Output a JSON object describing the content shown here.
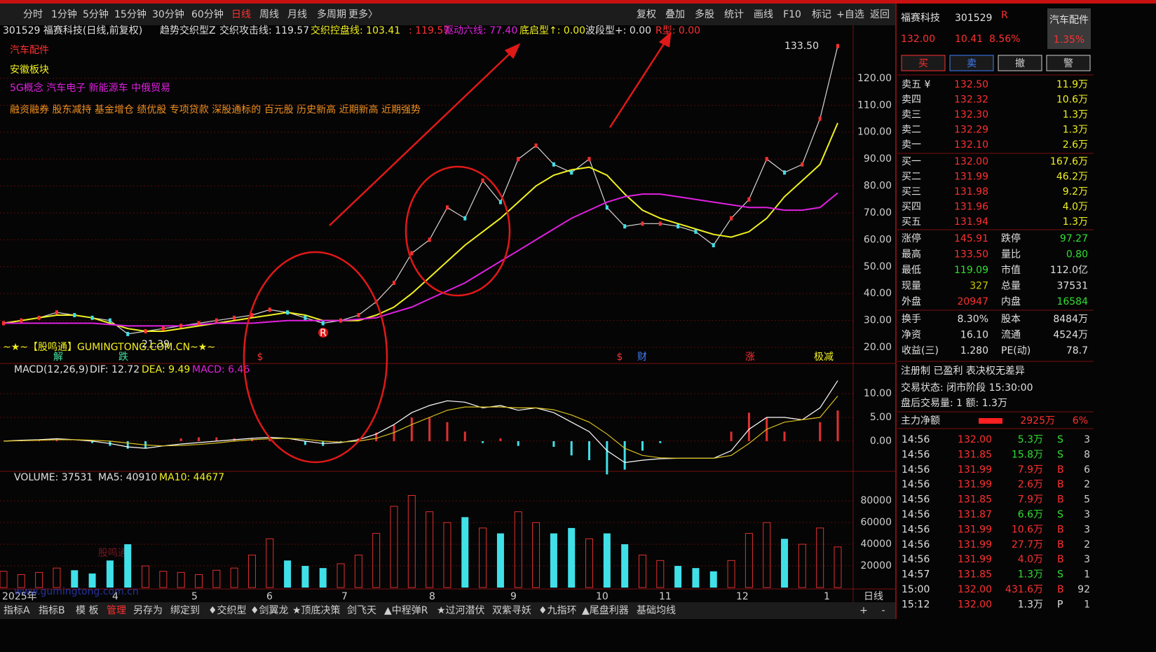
{
  "toolbar": {
    "periods": [
      "分时",
      "1分钟",
      "5分钟",
      "15分钟",
      "30分钟",
      "60分钟",
      "日线",
      "周线",
      "月线",
      "多周期",
      "更多〉"
    ],
    "tools": [
      "复权",
      "叠加",
      "多股",
      "统计",
      "画线",
      "F10",
      "标记",
      "+自选",
      "返回"
    ]
  },
  "info": {
    "stock": "301529 福赛科技(日线,前复权)",
    "indicator": "趋势交织型Z",
    "items": [
      "交织攻击线: 119.57",
      "交织控盘线: 103.41",
      ": 119.57",
      "驱动六线: 77.40",
      "底启型↑: 0.00",
      "波段型+: 0.00",
      "R型: 0.00"
    ]
  },
  "tags": [
    "汽车配件",
    "安徽板块",
    "5G概念 汽车电子 新能源车 中俄贸易",
    "融资融券 股东减持 基金增仓 绩优股 专项贷款 深股通标的 百元股 历史新高 近期新高 近期强势"
  ],
  "price_chart": {
    "type": "line",
    "high_label": "133.50",
    "low_label": "21.39",
    "watermark_line": "~★~【股鸣通】GUMINGTONG.COM.CN~★~",
    "r_marker": "R",
    "events": [
      "解",
      "跌",
      "$",
      "$",
      "财",
      "涨",
      "极减"
    ],
    "ylim": [
      14.3,
      140
    ],
    "yticks": [
      {
        "value": 20,
        "label": "20.00"
      },
      {
        "value": 30,
        "label": "30.00"
      },
      {
        "value": 40,
        "label": "40.00"
      },
      {
        "value": 50,
        "label": "50.00"
      },
      {
        "value": 60,
        "label": "60.00"
      },
      {
        "value": 70,
        "label": "70.00"
      },
      {
        "value": 80,
        "label": "80.00"
      },
      {
        "value": 90,
        "label": "90.00"
      },
      {
        "value": 100,
        "label": "100.00"
      },
      {
        "value": 110,
        "label": "110.00"
      },
      {
        "value": 120,
        "label": "120.00"
      }
    ],
    "series": [
      {
        "name": "close",
        "color": "#d8d8d8",
        "values": [
          29,
          30,
          31,
          33,
          32,
          31,
          30,
          25,
          26,
          27,
          28,
          29,
          30,
          31,
          32,
          34,
          33,
          31,
          29,
          30,
          32,
          37,
          44,
          55,
          60,
          72,
          68,
          82,
          74,
          90,
          95,
          88,
          85,
          90,
          72,
          65,
          66,
          66,
          65,
          63,
          58,
          68,
          75,
          90,
          85,
          88,
          105,
          132
        ]
      },
      {
        "name": "交织控盘线",
        "color": "#f0f020",
        "values": [
          29,
          30,
          31,
          32,
          32,
          31,
          29,
          27,
          26,
          26,
          27,
          28,
          29,
          30,
          31,
          32,
          33,
          32,
          30,
          30,
          30,
          32,
          35,
          40,
          46,
          52,
          58,
          63,
          68,
          74,
          80,
          84,
          86,
          87,
          84,
          77,
          71,
          68,
          66,
          64,
          62,
          61,
          63,
          68,
          76,
          82,
          88,
          103.41
        ]
      },
      {
        "name": "驱动六线",
        "color": "#e020e0",
        "values": [
          29,
          29,
          29,
          29,
          29,
          29,
          28.5,
          28,
          28,
          28,
          28,
          28.5,
          29,
          29,
          29,
          29.5,
          30,
          30,
          30,
          30,
          30.5,
          31,
          33,
          35,
          38,
          41,
          44,
          48,
          52,
          56,
          60,
          64,
          68,
          71,
          74,
          76,
          77,
          77,
          76,
          75,
          74,
          73,
          72,
          72,
          71,
          71,
          72,
          77.4
        ]
      }
    ],
    "x_labels": [
      "2025年",
      "4",
      "5",
      "6",
      "7",
      "8",
      "9",
      "10",
      "11",
      "12",
      "1"
    ],
    "period_label": "日线"
  },
  "macd_chart": {
    "type": "line",
    "labels": [
      "MACD(12,26,9)",
      "DIF: 12.72",
      "DEA: 9.49",
      "MACD: 6.46"
    ],
    "ylim": [
      -6.2,
      16.2
    ],
    "yticks": [
      {
        "value": 0,
        "label": "0.00"
      },
      {
        "value": 5,
        "label": "5.00"
      },
      {
        "value": 10,
        "label": "10.00"
      }
    ],
    "dif": {
      "color": "#ffffff",
      "values": [
        0,
        0.2,
        0.3,
        0.5,
        0.3,
        0,
        -0.5,
        -1.2,
        -1.5,
        -1,
        -0.6,
        -0.3,
        0,
        0.3,
        0.6,
        0.8,
        0.6,
        0,
        -0.5,
        -0.3,
        0.3,
        1.5,
        3.5,
        6,
        7.5,
        8.5,
        8.2,
        7,
        7.5,
        6.5,
        7,
        6,
        4,
        2,
        -2,
        -4.5,
        -4,
        -3.7,
        -3.6,
        -3.6,
        -3.6,
        -2,
        2.5,
        5,
        5,
        4.5,
        7,
        12.72
      ]
    },
    "dea": {
      "color": "#d8c020",
      "values": [
        0,
        0.1,
        0.2,
        0.3,
        0.3,
        0.2,
        0,
        -0.4,
        -0.8,
        -1,
        -0.9,
        -0.7,
        -0.4,
        0,
        0.3,
        0.5,
        0.6,
        0.4,
        0,
        -0.2,
        0,
        0.6,
        1.8,
        3.5,
        5,
        6.5,
        7.2,
        7.2,
        7.2,
        7,
        7,
        6.6,
        5.5,
        4,
        1.5,
        -1.5,
        -3,
        -3.5,
        -3.6,
        -3.6,
        -3.6,
        -3,
        -0.5,
        2.5,
        4,
        4.5,
        5,
        9.49
      ]
    },
    "hist": {
      "values": [
        0,
        0.2,
        0.2,
        0.4,
        0,
        -0.4,
        -1,
        -1.6,
        -1.4,
        0,
        0.6,
        0.8,
        0.8,
        0.6,
        0.6,
        0.6,
        0,
        -0.8,
        -1,
        -0.2,
        0.6,
        1.8,
        3.4,
        5,
        5,
        4,
        2,
        -0.4,
        0.6,
        -1,
        0,
        -1.2,
        -3,
        -4,
        -7,
        -6,
        -2,
        -0.4,
        0,
        0,
        0,
        2,
        6,
        5,
        2,
        0,
        4,
        6.46
      ]
    }
  },
  "volume_chart": {
    "type": "bar",
    "labels": [
      "VOLUME: 37531",
      "MA5: 40910",
      "MA10: 44677"
    ],
    "ylim": [
      0,
      106000
    ],
    "yticks": [
      20000,
      40000,
      60000,
      80000
    ],
    "values": [
      15000,
      12000,
      14000,
      18000,
      16000,
      13000,
      25000,
      40000,
      20000,
      15000,
      14000,
      12000,
      16000,
      18000,
      30000,
      45000,
      25000,
      20000,
      18000,
      22000,
      30000,
      50000,
      75000,
      85000,
      70000,
      60000,
      65000,
      55000,
      50000,
      70000,
      60000,
      50000,
      55000,
      45000,
      50000,
      40000,
      30000,
      25000,
      20000,
      18000,
      15000,
      25000,
      50000,
      60000,
      45000,
      40000,
      55000,
      37531
    ],
    "watermark": "股鸣通",
    "watermark_url": "www.gumingtong.com.cn"
  },
  "bottom_tabs": [
    "指标A",
    "指标B",
    "模 板",
    "管理",
    "另存为",
    "绑定到",
    "♦交织型",
    "♦剑翼龙",
    "★顶底决策",
    "剑飞天",
    "▲中程弹R",
    "★过河潜伏",
    "双紫寻妖",
    "♦九指环",
    "▲尾盘利器",
    "基础均线"
  ],
  "bottom_buttons": [
    "+",
    "-"
  ],
  "quote": {
    "name": "福赛科技",
    "code": "301529",
    "flag": "R",
    "sector": "汽车配件",
    "price": "132.00",
    "change": "10.41",
    "pct": "8.56%",
    "sector_pct": "1.35%",
    "buttons": [
      "买",
      "卖",
      "撤",
      "警"
    ],
    "asks": [
      [
        "卖五 ¥",
        "132.50",
        "11.9万"
      ],
      [
        "卖四",
        "132.32",
        "10.6万"
      ],
      [
        "卖三",
        "132.30",
        "1.3万"
      ],
      [
        "卖二",
        "132.29",
        "1.3万"
      ],
      [
        "卖一",
        "132.10",
        "2.6万"
      ]
    ],
    "bids": [
      [
        "买一",
        "132.00",
        "167.6万"
      ],
      [
        "买二",
        "131.99",
        "46.2万"
      ],
      [
        "买三",
        "131.98",
        "9.2万"
      ],
      [
        "买四",
        "131.96",
        "4.0万"
      ],
      [
        "买五",
        "131.94",
        "1.3万"
      ]
    ],
    "stats": [
      [
        "涨停",
        "145.91",
        "跌停",
        "97.27"
      ],
      [
        "最高",
        "133.50",
        "量比",
        "0.80"
      ],
      [
        "最低",
        "119.09",
        "市值",
        "112.0亿"
      ],
      [
        "现量",
        "327",
        "总量",
        "37531"
      ],
      [
        "外盘",
        "20947",
        "内盘",
        "16584"
      ]
    ],
    "fundamentals": [
      [
        "换手",
        "8.30%",
        "股本",
        "8484万"
      ],
      [
        "净资",
        "16.10",
        "流通",
        "4524万"
      ],
      [
        "收益(三)",
        "1.280",
        "PE(动)",
        "78.7"
      ]
    ],
    "flags": "注册制 已盈利 表决权无差异",
    "status": "交易状态: 闭市阶段 15:30:00",
    "after_hours": "盘后交易量: 1 额: 1.3万",
    "main_flow": [
      "主力净额",
      "2925万",
      "6%"
    ],
    "ticks": [
      [
        "14:56",
        "132.00",
        "5.3万",
        "S",
        "3"
      ],
      [
        "14:56",
        "131.85",
        "15.8万",
        "S",
        "8"
      ],
      [
        "14:56",
        "131.99",
        "7.9万",
        "B",
        "6"
      ],
      [
        "14:56",
        "131.99",
        "2.6万",
        "B",
        "2"
      ],
      [
        "14:56",
        "131.85",
        "7.9万",
        "B",
        "5"
      ],
      [
        "14:56",
        "131.87",
        "6.6万",
        "S",
        "3"
      ],
      [
        "14:56",
        "131.99",
        "10.6万",
        "B",
        "3"
      ],
      [
        "14:56",
        "131.99",
        "27.7万",
        "B",
        "2"
      ],
      [
        "14:56",
        "131.99",
        "4.0万",
        "B",
        "3"
      ],
      [
        "14:57",
        "131.85",
        "1.3万",
        "S",
        "1"
      ],
      [
        "15:00",
        "132.00",
        "431.6万",
        "B",
        "92"
      ],
      [
        "15:12",
        "132.00",
        "1.3万",
        "P",
        "1"
      ]
    ]
  }
}
